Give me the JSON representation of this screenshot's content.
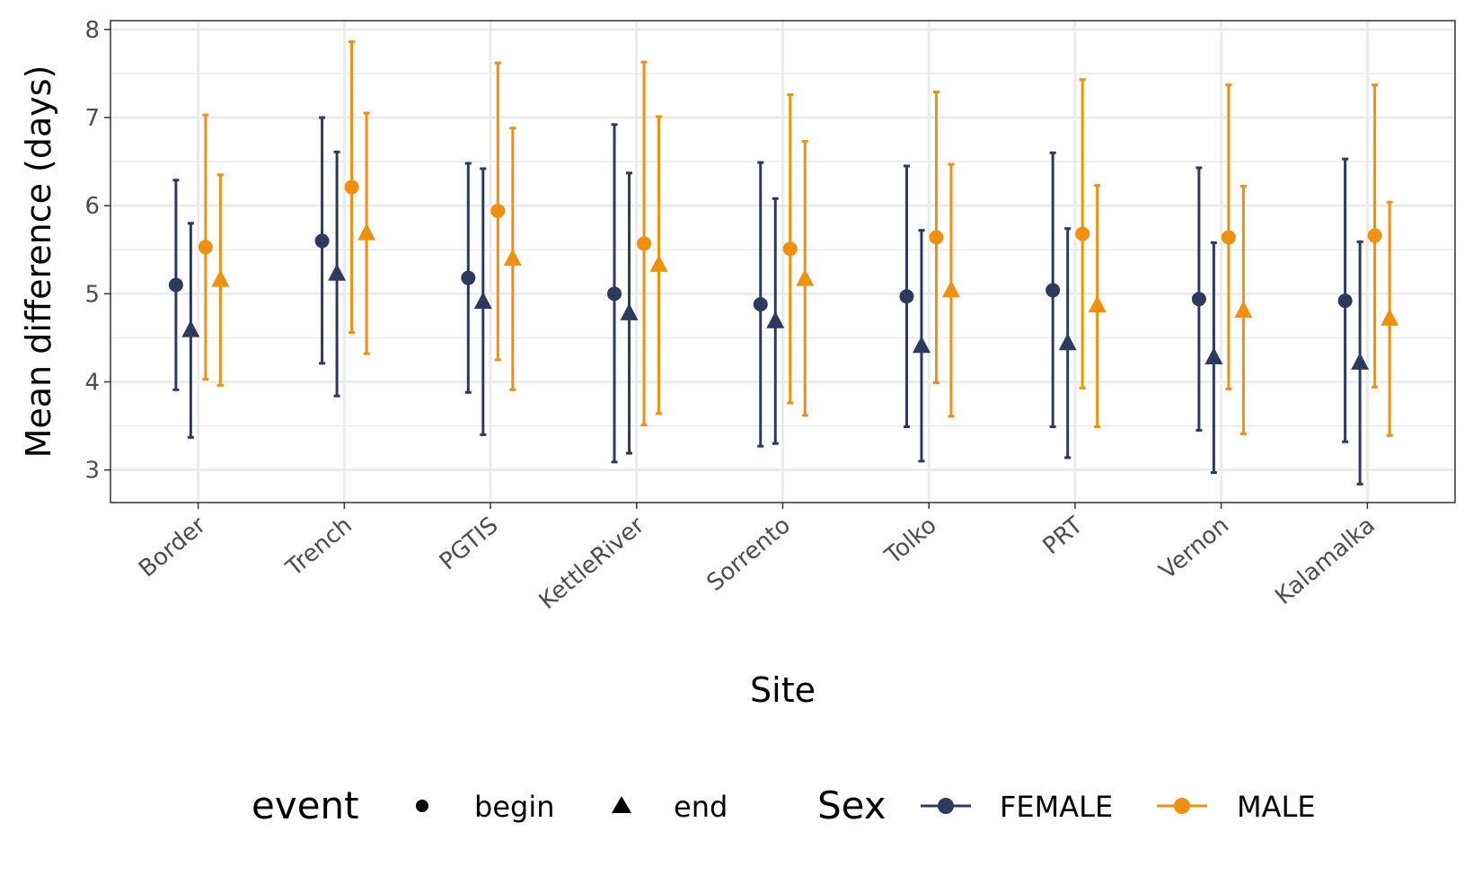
{
  "chart_data": {
    "type": "scatter",
    "xlabel": "Site",
    "ylabel": "Mean difference (days)",
    "ylim": [
      2.63,
      8.1
    ],
    "yticks": [
      3,
      4,
      5,
      6,
      7,
      8
    ],
    "grid": true,
    "categories": [
      "Border",
      "Trench",
      "PGTIS",
      "KettleRiver",
      "Sorrento",
      "Tolko",
      "PRT",
      "Vernon",
      "Kalamalka"
    ],
    "series": [
      {
        "sex": "FEMALE",
        "event": "begin",
        "color": "#2d3a5e",
        "shape": "circle",
        "values": [
          5.1,
          5.6,
          5.18,
          5.0,
          4.88,
          4.97,
          5.04,
          4.94,
          4.92
        ],
        "lower": [
          3.91,
          4.21,
          3.88,
          3.09,
          3.27,
          3.49,
          3.49,
          3.45,
          3.32
        ],
        "upper": [
          6.29,
          7.0,
          6.48,
          6.92,
          6.49,
          6.45,
          6.6,
          6.43,
          6.53
        ]
      },
      {
        "sex": "FEMALE",
        "event": "end",
        "color": "#2d3a5e",
        "shape": "triangle",
        "values": [
          4.59,
          5.23,
          4.91,
          4.78,
          4.69,
          4.41,
          4.44,
          4.28,
          4.22
        ],
        "lower": [
          3.37,
          3.84,
          3.4,
          3.19,
          3.3,
          3.1,
          3.14,
          2.97,
          2.84
        ],
        "upper": [
          5.8,
          6.61,
          6.42,
          6.37,
          6.08,
          5.72,
          5.74,
          5.58,
          5.59
        ]
      },
      {
        "sex": "MALE",
        "event": "begin",
        "color": "#f18f0f",
        "shape": "circle",
        "values": [
          5.53,
          6.21,
          5.94,
          5.57,
          5.51,
          5.64,
          5.68,
          5.64,
          5.66
        ],
        "lower": [
          4.03,
          4.56,
          4.25,
          3.51,
          3.76,
          3.99,
          3.93,
          3.92,
          3.94
        ],
        "upper": [
          7.03,
          7.86,
          7.62,
          7.63,
          7.26,
          7.29,
          7.43,
          7.37,
          7.37
        ]
      },
      {
        "sex": "MALE",
        "event": "end",
        "color": "#f18f0f",
        "shape": "triangle",
        "values": [
          5.16,
          5.69,
          5.4,
          5.33,
          5.17,
          5.04,
          4.87,
          4.81,
          4.72
        ],
        "lower": [
          3.96,
          4.32,
          3.91,
          3.64,
          3.62,
          3.61,
          3.49,
          3.41,
          3.39
        ],
        "upper": [
          6.35,
          7.05,
          6.88,
          7.01,
          6.73,
          6.47,
          6.23,
          6.22,
          6.04
        ]
      }
    ],
    "legend": {
      "position": "bottom",
      "event_title": "event",
      "event_items": [
        {
          "label": "begin",
          "shape": "circle"
        },
        {
          "label": "end",
          "shape": "triangle"
        }
      ],
      "sex_title": "Sex",
      "sex_items": [
        {
          "label": "FEMALE",
          "color": "#2d3a5e"
        },
        {
          "label": "MALE",
          "color": "#f18f0f"
        }
      ]
    }
  }
}
